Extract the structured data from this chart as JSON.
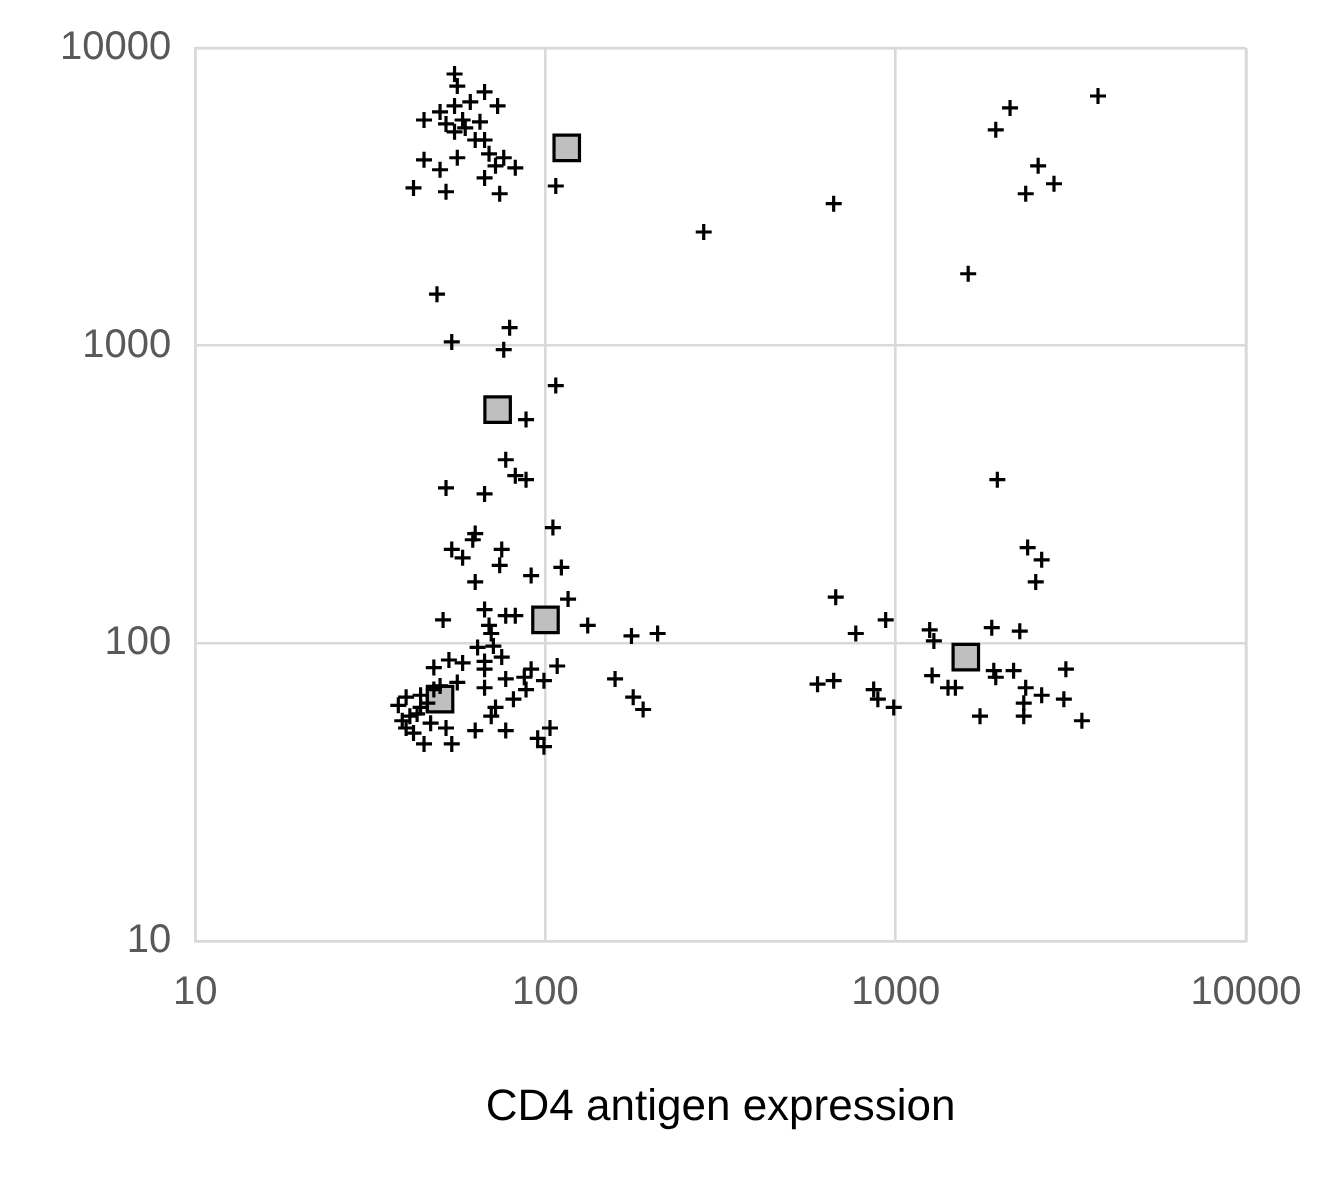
{
  "chart_data": {
    "type": "scatter",
    "xlabel": "CD4 antigen expression",
    "log": "xy",
    "grid": true,
    "legend": false,
    "xlim": [
      10,
      10000
    ],
    "ylim": [
      10,
      10000
    ],
    "xticks": [
      10,
      100,
      1000,
      10000
    ],
    "yticks": [
      10,
      100,
      1000,
      10000
    ],
    "series": [
      {
        "color": "#000000",
        "marker": "cross",
        "x": [
          55,
          56,
          67,
          73,
          61,
          55,
          50,
          45,
          52,
          58,
          65,
          55,
          59,
          63,
          67,
          69,
          76,
          72,
          82,
          56,
          45,
          50,
          67,
          42,
          52,
          74,
          107,
          49,
          54,
          79,
          76,
          107,
          88,
          77,
          82,
          88,
          52,
          67,
          105,
          63,
          62,
          54,
          58,
          75,
          74,
          111,
          91,
          63,
          51,
          67,
          77,
          82,
          69,
          70,
          116,
          132,
          176,
          209,
          64,
          71,
          75,
          67,
          53,
          58,
          48,
          67,
          108,
          91,
          87,
          77,
          99,
          88,
          67,
          158,
          178,
          190,
          81,
          72,
          70,
          77,
          63,
          54,
          95,
          103,
          99,
          40,
          41,
          42,
          44,
          47,
          48,
          52,
          45,
          38,
          39,
          43,
          46,
          40,
          44,
          50,
          56,
          674,
          936,
          769,
          1250,
          1285,
          1880,
          2260,
          598,
          665,
          865,
          889,
          987,
          1270,
          1410,
          1480,
          1905,
          1930,
          2170,
          3060,
          2350,
          2610,
          3020,
          2320,
          2320,
          1740,
          3400,
          283,
          665,
          2120,
          1930,
          3780,
          2550,
          2830,
          2350,
          1610,
          1950,
          2380,
          2610,
          2510
        ],
        "values": [
          8180,
          7450,
          7120,
          6390,
          6590,
          6390,
          6100,
          5730,
          5560,
          5730,
          5650,
          5230,
          5390,
          4910,
          4910,
          4410,
          4280,
          4020,
          3960,
          4280,
          4210,
          3900,
          3660,
          3390,
          3290,
          3240,
          3440,
          1490,
          1030,
          1150,
          970,
          735,
          565,
          414,
          366,
          355,
          333,
          318,
          245,
          234,
          223,
          207,
          194,
          207,
          183,
          180,
          169,
          161,
          120,
          130,
          124,
          124,
          115,
          108,
          141,
          115,
          106,
          108,
          97,
          98,
          90,
          87,
          88,
          86,
          83,
          82,
          84,
          82,
          77,
          76,
          75,
          70,
          71,
          76,
          66,
          60,
          65,
          61,
          57,
          51,
          51,
          46,
          48,
          52,
          45,
          66,
          57,
          50,
          61,
          54,
          70,
          52,
          46,
          62,
          55,
          58,
          63,
          52,
          67,
          72,
          74,
          143,
          120,
          108,
          111,
          102,
          113,
          110,
          73,
          75,
          70,
          65,
          61,
          78,
          71,
          71,
          81,
          77,
          81,
          82,
          71,
          67,
          65,
          63,
          57,
          57,
          55,
          2410,
          3000,
          6290,
          5310,
          6900,
          4020,
          3500,
          3240,
          1745,
          355,
          210,
          191,
          161
        ]
      },
      {
        "color": "#bfbfbf",
        "marker": "square",
        "x": [
          115,
          73,
          100,
          50,
          1585
        ],
        "values": [
          4620,
          610,
          120,
          65,
          90
        ]
      }
    ]
  }
}
